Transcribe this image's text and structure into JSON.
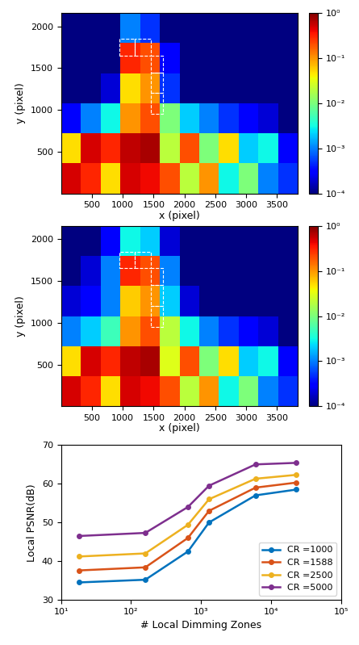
{
  "chart_data": [
    {
      "type": "heatmap",
      "xlabel": "x (pixel)",
      "ylabel": "y (pixel)",
      "xlim": [
        0,
        3840
      ],
      "ylim": [
        0,
        2160
      ],
      "xticks": [
        500,
        1000,
        1500,
        2000,
        2500,
        3000,
        3500
      ],
      "yticks": [
        500,
        1000,
        1500,
        2000
      ],
      "x_edges": [
        0,
        320,
        640,
        960,
        1280,
        1600,
        1920,
        2240,
        2560,
        2880,
        3200,
        3520,
        3840
      ],
      "y_edges": [
        0,
        360,
        720,
        1080,
        1440,
        1800,
        2160
      ],
      "cells": [
        [
          0.5,
          0.3,
          0.05,
          0.5,
          0.4,
          0.2,
          0.02,
          0.1,
          0.003,
          0.01,
          0.001,
          0.0005
        ],
        [
          0.05,
          0.5,
          0.3,
          0.6,
          0.7,
          0.02,
          0.2,
          0.01,
          0.05,
          0.002,
          0.003,
          0.0003
        ],
        [
          0.0003,
          0.001,
          0.003,
          0.1,
          0.2,
          0.01,
          0.002,
          0.001,
          0.0005,
          0.0003,
          0.0002,
          0.0001
        ],
        [
          0.0001,
          0.0001,
          0.0002,
          0.05,
          0.1,
          0.0005,
          0.0001,
          0.0001,
          0.0001,
          0.0001,
          0.0001,
          0.0001
        ],
        [
          0.0001,
          0.0001,
          0.0001,
          0.3,
          0.2,
          0.0003,
          0.0001,
          0.0001,
          0.0001,
          0.0001,
          0.0001,
          0.0001
        ],
        [
          0.0001,
          0.0001,
          0.0001,
          0.001,
          0.0005,
          0.0001,
          0.0001,
          0.0001,
          0.0001,
          0.0001,
          0.0001,
          0.0001
        ]
      ],
      "colorbar_lim": [
        0.0001,
        1
      ],
      "colorbar_ticks": [
        {
          "value": 0.0001,
          "label": "10⁻⁴"
        },
        {
          "value": 0.001,
          "label": "10⁻³"
        },
        {
          "value": 0.01,
          "label": "10⁻²"
        },
        {
          "value": 0.1,
          "label": "10⁻¹"
        },
        {
          "value": 1,
          "label": "10⁰"
        }
      ],
      "regions": [
        [
          950,
          1650,
          1200,
          1850
        ],
        [
          1200,
          1650,
          1450,
          1850
        ],
        [
          1450,
          1450,
          1650,
          1650
        ],
        [
          1450,
          1200,
          1650,
          1450
        ],
        [
          1450,
          950,
          1650,
          1200
        ]
      ]
    },
    {
      "type": "heatmap",
      "xlabel": "x (pixel)",
      "ylabel": "y (pixel)",
      "xlim": [
        0,
        3840
      ],
      "ylim": [
        0,
        2160
      ],
      "xticks": [
        500,
        1000,
        1500,
        2000,
        2500,
        3000,
        3500
      ],
      "yticks": [
        500,
        1000,
        1500,
        2000
      ],
      "x_edges": [
        0,
        320,
        640,
        960,
        1280,
        1600,
        1920,
        2240,
        2560,
        2880,
        3200,
        3520,
        3840
      ],
      "y_edges": [
        0,
        360,
        720,
        1080,
        1440,
        1800,
        2160
      ],
      "cells": [
        [
          0.5,
          0.3,
          0.05,
          0.5,
          0.4,
          0.2,
          0.02,
          0.1,
          0.003,
          0.01,
          0.001,
          0.0005
        ],
        [
          0.05,
          0.5,
          0.3,
          0.6,
          0.7,
          0.03,
          0.2,
          0.01,
          0.05,
          0.002,
          0.003,
          0.0003
        ],
        [
          0.001,
          0.002,
          0.005,
          0.1,
          0.2,
          0.02,
          0.003,
          0.001,
          0.0005,
          0.0003,
          0.0002,
          0.0001
        ],
        [
          0.0002,
          0.0003,
          0.001,
          0.06,
          0.1,
          0.002,
          0.0002,
          0.0001,
          0.0001,
          0.0001,
          0.0001,
          0.0001
        ],
        [
          0.0001,
          0.0002,
          0.001,
          0.3,
          0.2,
          0.001,
          0.0001,
          0.0001,
          0.0001,
          0.0001,
          0.0001,
          0.0001
        ],
        [
          0.0001,
          0.0001,
          0.0003,
          0.003,
          0.002,
          0.0002,
          0.0001,
          0.0001,
          0.0001,
          0.0001,
          0.0001,
          0.0001
        ]
      ],
      "colorbar_lim": [
        0.0001,
        1
      ],
      "colorbar_ticks": [
        {
          "value": 0.0001,
          "label": "10⁻⁴"
        },
        {
          "value": 0.001,
          "label": "10⁻³"
        },
        {
          "value": 0.01,
          "label": "10⁻²"
        },
        {
          "value": 0.1,
          "label": "10⁻¹"
        },
        {
          "value": 1,
          "label": "10⁰"
        }
      ],
      "regions": [
        [
          950,
          1650,
          1200,
          1850
        ],
        [
          1200,
          1650,
          1450,
          1850
        ],
        [
          1450,
          1450,
          1650,
          1650
        ],
        [
          1450,
          1200,
          1650,
          1450
        ],
        [
          1450,
          950,
          1650,
          1200
        ]
      ]
    },
    {
      "type": "line",
      "xlabel": "# Local Dimming Zones",
      "ylabel": "Local PSNR(dB)",
      "log": "x",
      "legend": "lower right",
      "marker": "o",
      "xlim": [
        10,
        100000
      ],
      "xticks": [
        {
          "value": 10,
          "label": "10¹"
        },
        {
          "value": 100,
          "label": "10²"
        },
        {
          "value": 1000,
          "label": "10³"
        },
        {
          "value": 10000,
          "label": "10⁴"
        },
        {
          "value": 100000,
          "label": "10⁵"
        }
      ],
      "ylim": [
        30,
        70
      ],
      "yticks": [
        30,
        40,
        50,
        60,
        70
      ],
      "x": [
        18,
        160,
        650,
        1300,
        6000,
        23000
      ],
      "series": [
        {
          "name": "CR =1000",
          "color": "#0072BD",
          "values": [
            34.5,
            35.2,
            42.5,
            50,
            57,
            58.5
          ]
        },
        {
          "name": "CR =1588",
          "color": "#D95319",
          "values": [
            37.6,
            38.4,
            46,
            53,
            59,
            60.3
          ]
        },
        {
          "name": "CR =2500",
          "color": "#EDB120",
          "values": [
            41.2,
            42,
            49.4,
            56,
            61.3,
            62.3
          ]
        },
        {
          "name": "CR =5000",
          "color": "#7E2F8E",
          "values": [
            46.5,
            47.3,
            54,
            59.5,
            65,
            65.4
          ]
        }
      ]
    }
  ]
}
